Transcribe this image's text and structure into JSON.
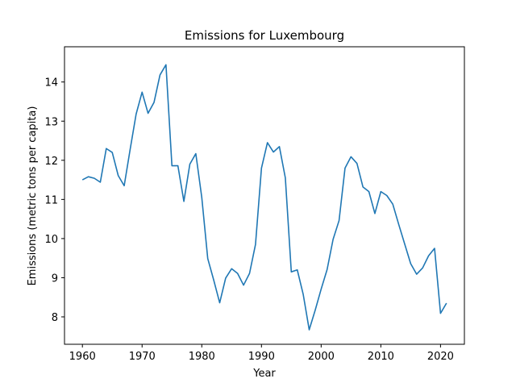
{
  "chart_data": {
    "type": "line",
    "title": "Emissions for Luxembourg",
    "xlabel": "Year",
    "ylabel": "Emissions (metric tons per capita)",
    "xlim": [
      1957,
      2024
    ],
    "ylim": [
      7.3,
      14.9
    ],
    "xticks": [
      1960,
      1970,
      1980,
      1990,
      2000,
      2010,
      2020
    ],
    "yticks": [
      8,
      9,
      10,
      11,
      12,
      13,
      14
    ],
    "grid": false,
    "line_color": "#1f77b4",
    "series": [
      {
        "x": [
          1960,
          1961,
          1962,
          1963,
          1964,
          1965,
          1966,
          1967,
          1968,
          1969,
          1970,
          1971,
          1972,
          1973,
          1974,
          1975,
          1976,
          1977,
          1978,
          1979,
          1980,
          1981,
          1982,
          1983,
          1984,
          1985,
          1986,
          1987,
          1988,
          1989,
          1990,
          1991,
          1992,
          1993,
          1994,
          1995,
          1996,
          1997,
          1998,
          1999,
          2000,
          2001,
          2002,
          2003,
          2004,
          2005,
          2006,
          2007,
          2008,
          2009,
          2010,
          2011,
          2012,
          2013,
          2014,
          2015,
          2016,
          2017,
          2018,
          2019,
          2020,
          2021
        ],
        "values": [
          11.5,
          11.58,
          11.54,
          11.44,
          12.3,
          12.2,
          11.61,
          11.35,
          12.28,
          13.18,
          13.74,
          13.2,
          13.48,
          14.18,
          14.44,
          11.86,
          11.86,
          10.95,
          11.9,
          12.17,
          11.05,
          9.49,
          8.94,
          8.36,
          8.99,
          9.23,
          9.11,
          8.81,
          9.11,
          9.85,
          11.8,
          12.45,
          12.21,
          12.35,
          11.55,
          9.15,
          9.2,
          8.57,
          7.67,
          8.17,
          8.71,
          9.21,
          9.98,
          10.46,
          11.8,
          12.09,
          11.92,
          11.32,
          11.2,
          10.64,
          11.2,
          11.1,
          10.88,
          10.36,
          9.86,
          9.36,
          9.09,
          9.25,
          9.56,
          9.75,
          8.09,
          8.35
        ]
      }
    ]
  }
}
